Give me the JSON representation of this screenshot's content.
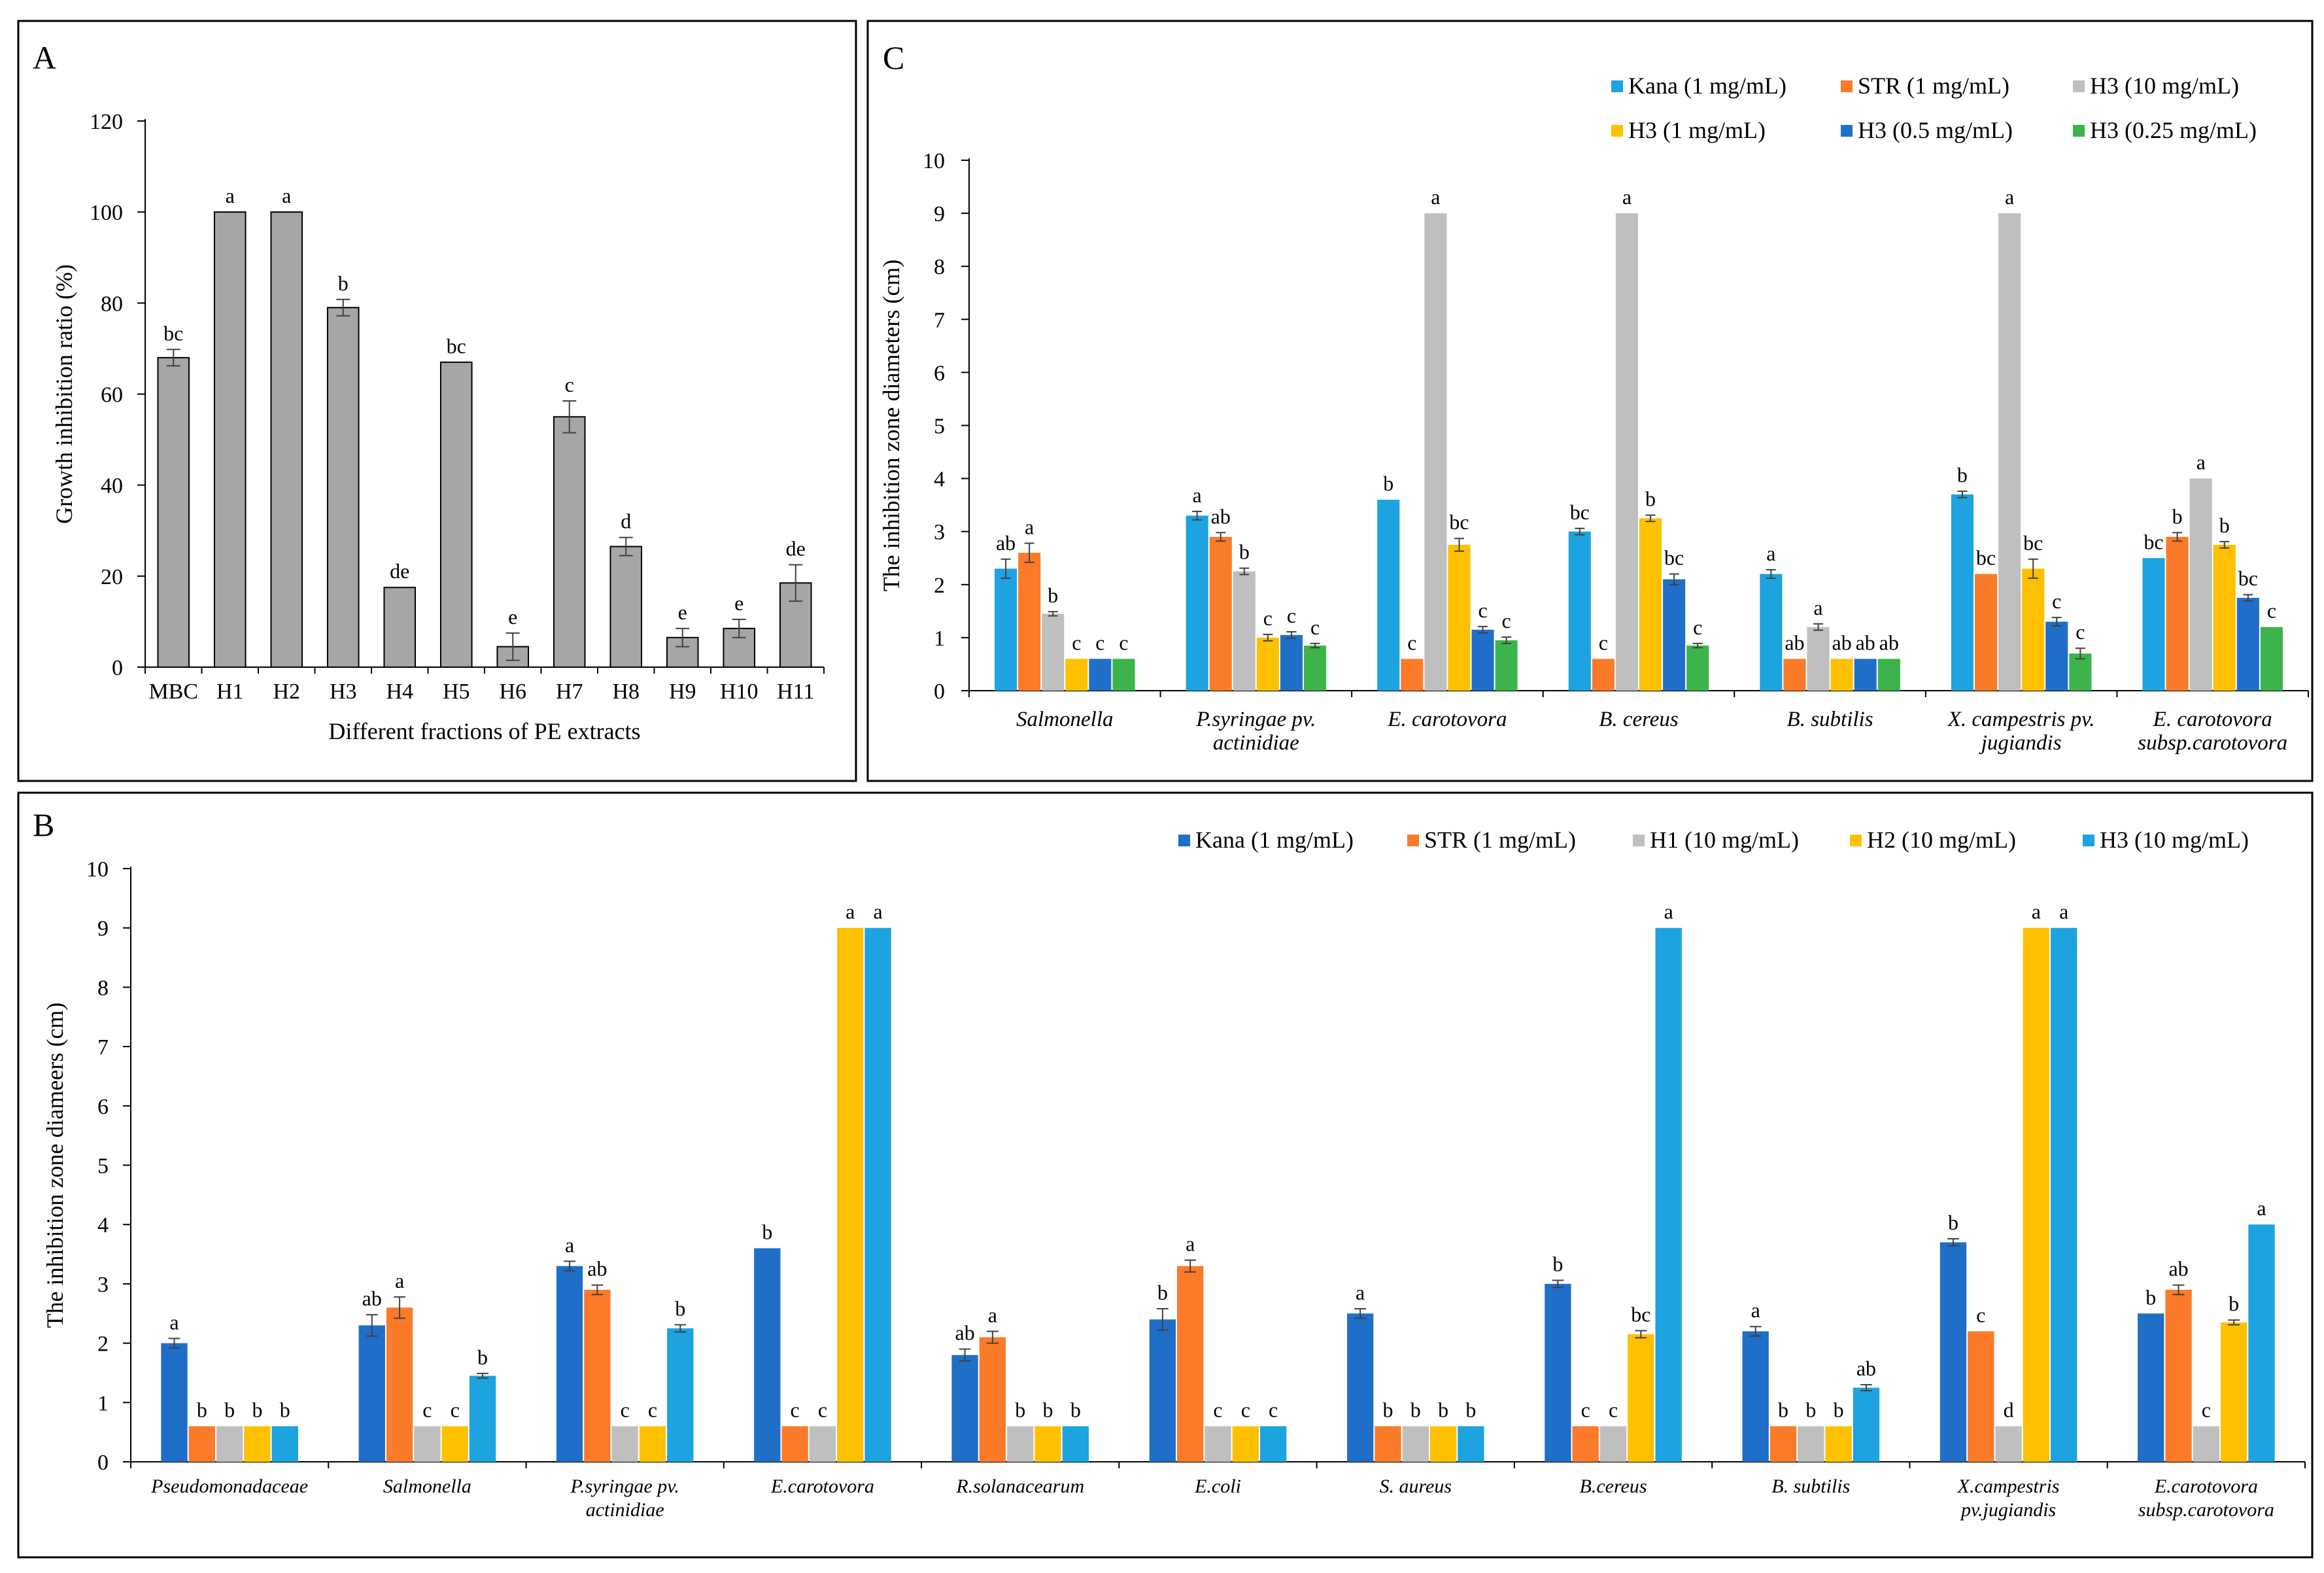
{
  "chart_data": [
    {
      "panel": "A",
      "type": "bar",
      "title": "",
      "xlabel": "Different fractions of PE extracts",
      "ylabel": "Growth inhibition ratio (%)",
      "ylim": [
        0,
        120
      ],
      "yticks": [
        "0",
        "20",
        "40",
        "60",
        "80",
        "100",
        "120"
      ],
      "grid": false,
      "colors": [
        "#a6a6a6"
      ],
      "categories": [
        "MBC",
        "H1",
        "H2",
        "H3",
        "H4",
        "H5",
        "H6",
        "H7",
        "H8",
        "H9",
        "H10",
        "H11"
      ],
      "values": [
        68,
        100,
        100,
        79,
        17.5,
        67,
        4.5,
        55,
        26.5,
        6.5,
        8.5,
        18.5
      ],
      "errors": [
        1.8,
        0,
        0,
        1.8,
        0,
        0,
        3.0,
        3.5,
        2.0,
        2.0,
        2.0,
        4.0
      ],
      "labels": [
        "bc",
        "a",
        "a",
        "b",
        "de",
        "bc",
        "e",
        "c",
        "d",
        "e",
        "e",
        "de"
      ]
    },
    {
      "panel": "B",
      "type": "bar",
      "title": "",
      "xlabel": "",
      "ylabel": "The inhibition zone diameers (cm)",
      "ylim": [
        0,
        10
      ],
      "yticks": [
        "0",
        "1",
        "2",
        "3",
        "4",
        "5",
        "6",
        "7",
        "8",
        "9",
        "10"
      ],
      "grid": false,
      "legend_position": "top-right",
      "categories": [
        [
          "Pseudomonadaceae"
        ],
        [
          "Salmonella"
        ],
        [
          "P.syringae pv.",
          "actinidiae"
        ],
        [
          "E.carotovora"
        ],
        [
          "R.solanacearum"
        ],
        [
          "E.coli"
        ],
        [
          "S. aureus"
        ],
        [
          "B.cereus"
        ],
        [
          "B. subtilis"
        ],
        [
          "X.campestris",
          "pv.jugiandis"
        ],
        [
          "E.carotovora",
          "subsp.carotovora"
        ]
      ],
      "series": [
        {
          "name": "Kana (1 mg/mL)",
          "color": "#1f6fc8",
          "values": [
            2.0,
            2.3,
            3.3,
            3.6,
            1.8,
            2.4,
            2.5,
            3.0,
            2.2,
            3.7,
            2.5
          ],
          "errors": [
            0.08,
            0.18,
            0.08,
            0,
            0.1,
            0.18,
            0.08,
            0.06,
            0.08,
            0.06,
            0
          ],
          "labels": [
            "a",
            "ab",
            "a",
            "b",
            "ab",
            "b",
            "a",
            "b",
            "a",
            "b",
            "b"
          ]
        },
        {
          "name": "STR (1 mg/mL)",
          "color": "#fb7b2a",
          "values": [
            0.6,
            2.6,
            2.9,
            0.6,
            2.1,
            3.3,
            0.6,
            0.6,
            0.6,
            2.2,
            2.9
          ],
          "errors": [
            0,
            0.18,
            0.08,
            0,
            0.1,
            0.1,
            0,
            0,
            0,
            0,
            0.08
          ],
          "labels": [
            "b",
            "a",
            "ab",
            "c",
            "a",
            "a",
            "b",
            "c",
            "b",
            "c",
            "ab"
          ]
        },
        {
          "name": "H1 (10 mg/mL)",
          "color": "#bfbfbf",
          "values": [
            0.6,
            0.6,
            0.6,
            0.6,
            0.6,
            0.6,
            0.6,
            0.6,
            0.6,
            0.6,
            0.6
          ],
          "errors": [
            0,
            0,
            0,
            0,
            0,
            0,
            0,
            0,
            0,
            0,
            0
          ],
          "labels": [
            "b",
            "c",
            "c",
            "c",
            "b",
            "c",
            "b",
            "c",
            "b",
            "d",
            "c"
          ]
        },
        {
          "name": "H2 (10 mg/mL)",
          "color": "#ffc000",
          "values": [
            0.6,
            0.6,
            0.6,
            9.0,
            0.6,
            0.6,
            0.6,
            2.15,
            0.6,
            9.0,
            2.35
          ],
          "errors": [
            0,
            0,
            0,
            0,
            0,
            0,
            0,
            0.06,
            0,
            0,
            0.04
          ],
          "labels": [
            "b",
            "c",
            "c",
            "a",
            "b",
            "c",
            "b",
            "bc",
            "b",
            "a",
            "b"
          ]
        },
        {
          "name": "H3 (10 mg/mL)",
          "color": "#1ca3e0",
          "values": [
            0.6,
            1.45,
            2.25,
            9.0,
            0.6,
            0.6,
            0.6,
            9.0,
            1.25,
            9.0,
            4.0
          ],
          "errors": [
            0,
            0.04,
            0.06,
            0,
            0,
            0,
            0,
            0,
            0.05,
            0,
            0
          ],
          "labels": [
            "b",
            "b",
            "b",
            "a",
            "b",
            "c",
            "b",
            "a",
            "ab",
            "a",
            "a"
          ]
        }
      ]
    },
    {
      "panel": "C",
      "type": "bar",
      "title": "",
      "xlabel": "",
      "ylabel": "The inhibition zone diameters (cm)",
      "ylim": [
        0,
        10
      ],
      "yticks": [
        "0",
        "1",
        "2",
        "3",
        "4",
        "5",
        "6",
        "7",
        "8",
        "9",
        "10"
      ],
      "grid": false,
      "legend_position": "top-right",
      "categories": [
        [
          "Salmonella"
        ],
        [
          "P.syringae pv.",
          "actinidiae"
        ],
        [
          "E. carotovora"
        ],
        [
          "B. cereus"
        ],
        [
          "B. subtilis"
        ],
        [
          "X. campestris pv.",
          "jugiandis"
        ],
        [
          "E. carotovora",
          "subsp.carotovora"
        ]
      ],
      "series": [
        {
          "name": "Kana (1 mg/mL)",
          "color": "#1ca3e0",
          "values": [
            2.3,
            3.3,
            3.6,
            3.0,
            2.2,
            3.7,
            2.5
          ],
          "errors": [
            0.18,
            0.08,
            0,
            0.06,
            0.08,
            0.06,
            0
          ],
          "labels": [
            "ab",
            "a",
            "b",
            "bc",
            "a",
            "b",
            "bc"
          ]
        },
        {
          "name": "STR (1 mg/mL)",
          "color": "#fb7b2a",
          "values": [
            2.6,
            2.9,
            0.6,
            0.6,
            0.6,
            2.2,
            2.9
          ],
          "errors": [
            0.18,
            0.08,
            0,
            0,
            0,
            0,
            0.08
          ],
          "labels": [
            "a",
            "ab",
            "c",
            "c",
            "ab",
            "bc",
            "b"
          ]
        },
        {
          "name": "H3 (10 mg/mL)",
          "color": "#bfbfbf",
          "values": [
            1.45,
            2.25,
            9.0,
            9.0,
            1.2,
            9.0,
            4.0
          ],
          "errors": [
            0.04,
            0.06,
            0,
            0,
            0.06,
            0,
            0
          ],
          "labels": [
            "b",
            "b",
            "a",
            "a",
            "a",
            "a",
            "a"
          ]
        },
        {
          "name": "H3 (1 mg/mL)",
          "color": "#ffc000",
          "values": [
            0.6,
            1.0,
            2.75,
            3.25,
            0.6,
            2.3,
            2.75
          ],
          "errors": [
            0,
            0.06,
            0.12,
            0.06,
            0,
            0.18,
            0.06
          ],
          "labels": [
            "c",
            "c",
            "bc",
            "b",
            "ab",
            "bc",
            "b"
          ]
        },
        {
          "name": "H3 (0.5 mg/mL)",
          "color": "#1f6fc8",
          "values": [
            0.6,
            1.05,
            1.15,
            2.1,
            0.6,
            1.3,
            1.75
          ],
          "errors": [
            0,
            0.06,
            0.06,
            0.1,
            0,
            0.08,
            0.06
          ],
          "labels": [
            "c",
            "c",
            "c",
            "bc",
            "ab",
            "c",
            "bc"
          ]
        },
        {
          "name": "H3 (0.25 mg/mL)",
          "color": "#3cb44b",
          "values": [
            0.6,
            0.85,
            0.95,
            0.85,
            0.6,
            0.7,
            1.2
          ],
          "errors": [
            0,
            0.04,
            0.06,
            0.04,
            0,
            0.1,
            0
          ],
          "labels": [
            "c",
            "c",
            "c",
            "c",
            "ab",
            "c",
            "c"
          ]
        }
      ]
    }
  ]
}
